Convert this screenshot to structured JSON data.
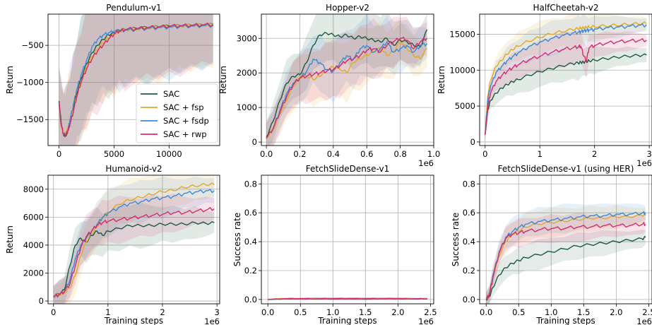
{
  "figure": {
    "legend": [
      {
        "name": "SAC",
        "color": "#1d5a3f"
      },
      {
        "name": "SAC + fsp",
        "color": "#e5a823"
      },
      {
        "name": "SAC + fsdp",
        "color": "#3b8ad8"
      },
      {
        "name": "SAC + rwp",
        "color": "#d62b6b"
      }
    ]
  },
  "chart_data": [
    {
      "type": "line",
      "title": "Pendulum-v1",
      "ylabel": "Return",
      "xlabel": "",
      "xlim": [
        -1000,
        14600
      ],
      "ylim": [
        -1850,
        -80
      ],
      "xticks": [
        0,
        5000,
        10000
      ],
      "xtick_labels": [
        "0",
        "5000",
        "10000"
      ],
      "yticks": [
        -1500,
        -1000,
        -500
      ],
      "ytick_labels": [
        "−1500",
        "−1000",
        "−500"
      ],
      "x_multiplier": "",
      "legend": "center-right",
      "x": [
        0,
        200,
        400,
        600,
        800,
        1000,
        1300,
        1600,
        2000,
        2500,
        3000,
        3500,
        4000,
        4500,
        5000,
        5500,
        6000,
        7000,
        8000,
        9000,
        10000,
        11000,
        12000,
        13000,
        14000
      ],
      "series": [
        {
          "name": "SAC",
          "values": [
            -1250,
            -1550,
            -1700,
            -1720,
            -1650,
            -1550,
            -1350,
            -1150,
            -950,
            -750,
            -600,
            -500,
            -420,
            -360,
            -330,
            -300,
            -290,
            -270,
            -260,
            -250,
            -240,
            -235,
            -230,
            -225,
            -220
          ]
        },
        {
          "name": "SAC + fsp",
          "values": [
            -1350,
            -1600,
            -1680,
            -1700,
            -1620,
            -1520,
            -1380,
            -1200,
            -1000,
            -800,
            -650,
            -560,
            -470,
            -410,
            -350,
            -320,
            -300,
            -285,
            -275,
            -260,
            -255,
            -245,
            -240,
            -235,
            -230
          ]
        },
        {
          "name": "SAC + fsdp",
          "values": [
            -1300,
            -1580,
            -1690,
            -1710,
            -1640,
            -1500,
            -1300,
            -1100,
            -900,
            -700,
            -520,
            -420,
            -360,
            -330,
            -310,
            -300,
            -295,
            -285,
            -270,
            -260,
            -255,
            -245,
            -240,
            -235,
            -230
          ]
        },
        {
          "name": "SAC + rwp",
          "values": [
            -1280,
            -1570,
            -1700,
            -1720,
            -1660,
            -1560,
            -1400,
            -1200,
            -1000,
            -820,
            -680,
            -580,
            -500,
            -420,
            -350,
            -310,
            -290,
            -280,
            -265,
            -255,
            -245,
            -240,
            -235,
            -228,
            -225
          ]
        }
      ]
    },
    {
      "type": "line",
      "title": "Hopper-v2",
      "ylabel": "Return",
      "xlabel": "",
      "xlim": [
        -0.03,
        1.0
      ],
      "ylim": [
        -100,
        3700
      ],
      "xticks": [
        0.0,
        0.2,
        0.4,
        0.6,
        0.8,
        1.0
      ],
      "xtick_labels": [
        "0.0",
        "0.2",
        "0.4",
        "0.6",
        "0.8",
        "1.0"
      ],
      "yticks": [
        0,
        1000,
        2000,
        3000
      ],
      "ytick_labels": [
        "0",
        "1000",
        "2000",
        "3000"
      ],
      "x_multiplier": "1e6",
      "x": [
        0.0,
        0.04,
        0.08,
        0.12,
        0.16,
        0.2,
        0.24,
        0.28,
        0.32,
        0.36,
        0.4,
        0.44,
        0.48,
        0.52,
        0.56,
        0.6,
        0.64,
        0.68,
        0.72,
        0.76,
        0.8,
        0.84,
        0.88,
        0.92,
        0.96
      ],
      "series": [
        {
          "name": "SAC",
          "values": [
            150,
            600,
            1200,
            1700,
            1900,
            1950,
            2300,
            2800,
            3100,
            3150,
            3100,
            3050,
            3100,
            3000,
            3050,
            3000,
            2950,
            2900,
            3000,
            2800,
            2950,
            2900,
            2800,
            2750,
            3250
          ]
        },
        {
          "name": "SAC + fsp",
          "values": [
            100,
            350,
            800,
            1200,
            1600,
            1850,
            1900,
            1800,
            1900,
            2100,
            2150,
            2100,
            2000,
            2300,
            2400,
            2500,
            2600,
            2700,
            2500,
            2600,
            2900,
            2700,
            2500,
            2400,
            2700
          ]
        },
        {
          "name": "SAC + fsdp",
          "values": [
            120,
            400,
            900,
            1400,
            1700,
            1850,
            2050,
            2400,
            2300,
            2100,
            2050,
            2300,
            2500,
            2400,
            2700,
            2800,
            2600,
            2700,
            2900,
            2600,
            2700,
            2800,
            2600,
            2800,
            2850
          ]
        },
        {
          "name": "SAC + rwp",
          "values": [
            110,
            380,
            850,
            1300,
            1650,
            1850,
            1900,
            1950,
            2000,
            2050,
            2100,
            2200,
            2350,
            2400,
            2500,
            2650,
            2700,
            2600,
            2800,
            2900,
            3000,
            2950,
            2700,
            2900,
            3000
          ]
        }
      ]
    },
    {
      "type": "line",
      "title": "HalfCheetah-v2",
      "ylabel": "Return",
      "xlabel": "",
      "xlim": [
        -0.1,
        3.05
      ],
      "ylim": [
        -500,
        17800
      ],
      "xticks": [
        0,
        1,
        2,
        3
      ],
      "xtick_labels": [
        "0",
        "1",
        "2",
        "3"
      ],
      "yticks": [
        0,
        5000,
        10000,
        15000
      ],
      "ytick_labels": [
        "0",
        "5000",
        "10000",
        "15000"
      ],
      "x_multiplier": "1e6",
      "x": [
        0.0,
        0.05,
        0.1,
        0.2,
        0.3,
        0.4,
        0.5,
        0.6,
        0.8,
        1.0,
        1.2,
        1.4,
        1.6,
        1.7,
        1.75,
        1.8,
        1.85,
        1.9,
        2.0,
        2.2,
        2.4,
        2.6,
        2.8,
        2.95
      ],
      "series": [
        {
          "name": "SAC",
          "values": [
            1000,
            4500,
            5800,
            6800,
            7500,
            8000,
            8400,
            8700,
            9300,
            9800,
            10200,
            10600,
            10900,
            11000,
            11100,
            11100,
            11200,
            11300,
            11400,
            11600,
            11800,
            11950,
            12050,
            12100
          ]
        },
        {
          "name": "SAC + fsp",
          "values": [
            1000,
            6500,
            8500,
            10500,
            11300,
            12200,
            12800,
            13300,
            14000,
            14500,
            15000,
            15300,
            15600,
            15700,
            15800,
            15800,
            15900,
            15950,
            16000,
            16100,
            16200,
            16300,
            16400,
            16450
          ]
        },
        {
          "name": "SAC + fsdp",
          "values": [
            1000,
            6000,
            7800,
            9700,
            10500,
            11300,
            11900,
            12400,
            13300,
            13900,
            14400,
            14800,
            15200,
            15300,
            15400,
            15500,
            15550,
            15600,
            15700,
            15900,
            16000,
            16100,
            16250,
            16300
          ]
        },
        {
          "name": "SAC + rwp",
          "values": [
            1000,
            5000,
            6800,
            8400,
            9200,
            9800,
            10300,
            10700,
            11400,
            11900,
            12400,
            12800,
            13100,
            13200,
            13300,
            12000,
            11200,
            13100,
            13400,
            13700,
            13900,
            14000,
            14100,
            14150
          ]
        }
      ]
    },
    {
      "type": "line",
      "title": "Humanoid-v2",
      "ylabel": "Return",
      "xlabel": "Training steps",
      "xlim": [
        -0.1,
        3.05
      ],
      "ylim": [
        -200,
        9000
      ],
      "xticks": [
        0,
        1,
        2,
        3
      ],
      "xtick_labels": [
        "0",
        "1",
        "2",
        "3"
      ],
      "yticks": [
        0,
        2000,
        4000,
        6000,
        8000
      ],
      "ytick_labels": [
        "0",
        "2000",
        "4000",
        "6000",
        "8000"
      ],
      "x_multiplier": "1e6",
      "x": [
        0.0,
        0.1,
        0.2,
        0.3,
        0.4,
        0.5,
        0.6,
        0.7,
        0.8,
        0.9,
        1.0,
        1.2,
        1.4,
        1.6,
        1.8,
        2.0,
        2.2,
        2.4,
        2.6,
        2.8,
        2.95
      ],
      "series": [
        {
          "name": "SAC",
          "values": [
            300,
            500,
            800,
            2500,
            4000,
            4500,
            4200,
            4700,
            5000,
            4700,
            5000,
            5200,
            5400,
            5400,
            5400,
            5500,
            5500,
            5500,
            5600,
            5550,
            5600
          ]
        },
        {
          "name": "SAC + fsp",
          "values": [
            300,
            400,
            600,
            900,
            1800,
            3200,
            4200,
            4800,
            5300,
            5900,
            6300,
            6900,
            7200,
            7400,
            7600,
            7800,
            7900,
            8100,
            8200,
            8300,
            8300
          ]
        },
        {
          "name": "SAC + fsdp",
          "values": [
            300,
            450,
            700,
            1500,
            3000,
            4000,
            4500,
            5000,
            5500,
            6000,
            6300,
            6700,
            7000,
            7100,
            7300,
            7400,
            7500,
            7700,
            7800,
            7900,
            7900
          ]
        },
        {
          "name": "SAC + rwp",
          "values": [
            300,
            450,
            650,
            1200,
            2500,
            3800,
            4600,
            5000,
            5400,
            5600,
            5700,
            5800,
            5900,
            6000,
            6100,
            6200,
            6300,
            6300,
            6400,
            6500,
            6600
          ]
        }
      ]
    },
    {
      "type": "line",
      "title": "FetchSlideDense-v1",
      "ylabel": "Success rate",
      "xlabel": "Training steps",
      "xlim": [
        -0.1,
        2.55
      ],
      "ylim": [
        -0.03,
        0.86
      ],
      "xticks": [
        0.0,
        0.5,
        1.0,
        1.5,
        2.0,
        2.5
      ],
      "xtick_labels": [
        "0.0",
        "0.5",
        "1.0",
        "1.5",
        "2.0",
        "2.5"
      ],
      "yticks": [
        0.0,
        0.2,
        0.4,
        0.6,
        0.8
      ],
      "ytick_labels": [
        "0.0",
        "0.2",
        "0.4",
        "0.6",
        "0.8"
      ],
      "x_multiplier": "1e6",
      "x": [
        0.0,
        0.25,
        0.5,
        0.75,
        1.0,
        1.25,
        1.5,
        1.75,
        2.0,
        2.25,
        2.45
      ],
      "series": [
        {
          "name": "SAC",
          "values": [
            0.0,
            0.005,
            0.003,
            0.006,
            0.004,
            0.005,
            0.004,
            0.006,
            0.005,
            0.004,
            0.005
          ]
        },
        {
          "name": "SAC + fsp",
          "values": [
            0.0,
            0.006,
            0.004,
            0.007,
            0.005,
            0.006,
            0.005,
            0.007,
            0.006,
            0.005,
            0.006
          ]
        },
        {
          "name": "SAC + fsdp",
          "values": [
            0.0,
            0.004,
            0.005,
            0.005,
            0.006,
            0.004,
            0.006,
            0.005,
            0.004,
            0.006,
            0.004
          ]
        },
        {
          "name": "SAC + rwp",
          "values": [
            0.0,
            0.005,
            0.006,
            0.004,
            0.005,
            0.006,
            0.004,
            0.005,
            0.006,
            0.004,
            0.005
          ]
        }
      ]
    },
    {
      "type": "line",
      "title": "FetchSlideDense-v1 (using HER)",
      "ylabel": "Success rate",
      "xlabel": "Training steps",
      "xlim": [
        -0.1,
        2.55
      ],
      "ylim": [
        -0.03,
        0.86
      ],
      "xticks": [
        0.0,
        0.5,
        1.0,
        1.5,
        2.0,
        2.5
      ],
      "xtick_labels": [
        "0.0",
        "0.5",
        "1.0",
        "1.5",
        "2.0",
        "2.5"
      ],
      "yticks": [
        0.0,
        0.2,
        0.4,
        0.6,
        0.8
      ],
      "ytick_labels": [
        "0.0",
        "0.2",
        "0.4",
        "0.6",
        "0.8"
      ],
      "x_multiplier": "1e6",
      "x": [
        0.0,
        0.05,
        0.1,
        0.2,
        0.3,
        0.4,
        0.5,
        0.6,
        0.8,
        1.0,
        1.2,
        1.4,
        1.6,
        1.8,
        2.0,
        2.2,
        2.4,
        2.45
      ],
      "series": [
        {
          "name": "SAC",
          "values": [
            0.0,
            0.02,
            0.08,
            0.17,
            0.22,
            0.25,
            0.27,
            0.29,
            0.31,
            0.33,
            0.35,
            0.37,
            0.38,
            0.39,
            0.4,
            0.41,
            0.42,
            0.43
          ]
        },
        {
          "name": "SAC + fsp",
          "values": [
            0.0,
            0.04,
            0.15,
            0.3,
            0.4,
            0.45,
            0.47,
            0.5,
            0.52,
            0.53,
            0.54,
            0.55,
            0.56,
            0.56,
            0.57,
            0.57,
            0.58,
            0.58
          ]
        },
        {
          "name": "SAC + fsdp",
          "values": [
            0.0,
            0.04,
            0.16,
            0.33,
            0.43,
            0.47,
            0.5,
            0.52,
            0.54,
            0.55,
            0.56,
            0.57,
            0.58,
            0.58,
            0.59,
            0.59,
            0.6,
            0.6
          ]
        },
        {
          "name": "SAC + rwp",
          "values": [
            0.0,
            0.03,
            0.14,
            0.32,
            0.42,
            0.45,
            0.46,
            0.47,
            0.48,
            0.49,
            0.49,
            0.5,
            0.5,
            0.51,
            0.51,
            0.51,
            0.52,
            0.52
          ]
        }
      ]
    }
  ]
}
